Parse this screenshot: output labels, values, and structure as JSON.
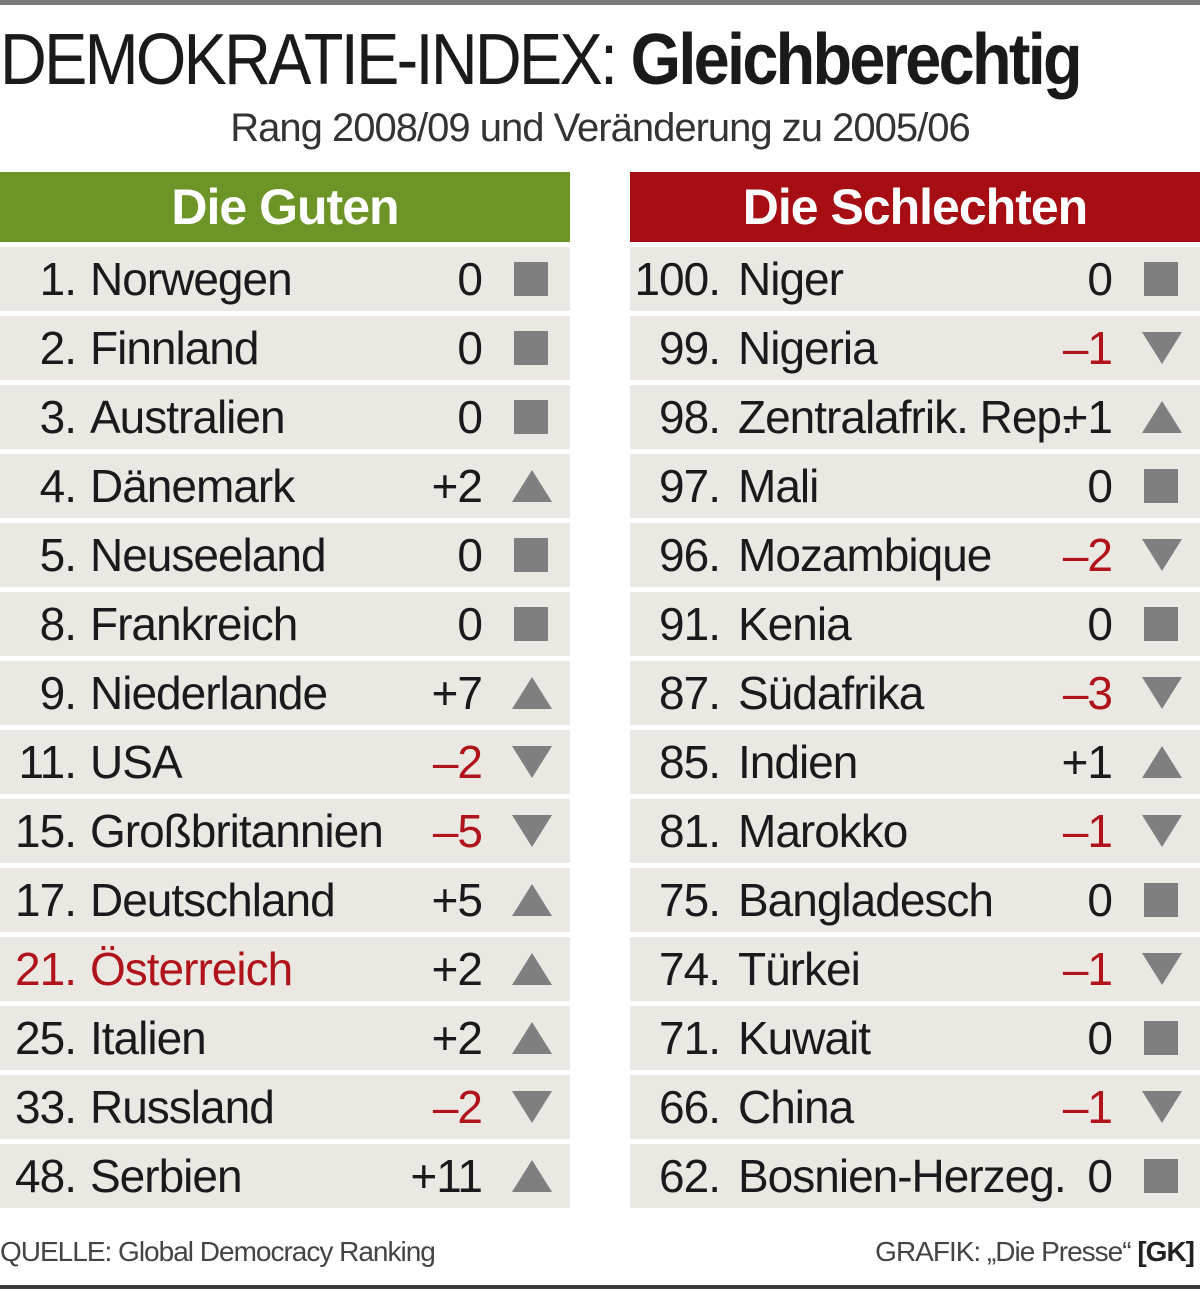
{
  "title_light": "DEMOKRATIE-INDEX:",
  "title_bold": "Gleichberechtigung",
  "subtitle": "Rang 2008/09 und Veränderung zu 2005/06",
  "source": "QUELLE: Global Democracy Ranking",
  "credit": "GRAFIK: „Die Presse“",
  "credit_tag": "[GK]",
  "colors": {
    "good": "#6d9426",
    "bad": "#a60e14",
    "negative": "#b0141a",
    "symbol": "#7f7f7f",
    "row_bg": "#ebe8e4"
  },
  "chart_data": {
    "type": "table",
    "tables": [
      {
        "header": "Die Guten",
        "rows": [
          {
            "rank": "1.",
            "country": "Norwegen",
            "change": "0",
            "trend": "square"
          },
          {
            "rank": "2.",
            "country": "Finnland",
            "change": "0",
            "trend": "square"
          },
          {
            "rank": "3.",
            "country": "Australien",
            "change": "0",
            "trend": "square"
          },
          {
            "rank": "4.",
            "country": "Dänemark",
            "change": "+2",
            "trend": "up"
          },
          {
            "rank": "5.",
            "country": "Neuseeland",
            "change": "0",
            "trend": "square"
          },
          {
            "rank": "8.",
            "country": "Frankreich",
            "change": "0",
            "trend": "square"
          },
          {
            "rank": "9.",
            "country": "Niederlande",
            "change": "+7",
            "trend": "up"
          },
          {
            "rank": "11.",
            "country": "USA",
            "change": "–2",
            "trend": "down"
          },
          {
            "rank": "15.",
            "country": "Großbritannien",
            "change": "–5",
            "trend": "down"
          },
          {
            "rank": "17.",
            "country": "Deutschland",
            "change": "+5",
            "trend": "up"
          },
          {
            "rank": "21.",
            "country": "Österreich",
            "change": "+2",
            "trend": "up",
            "highlight": true
          },
          {
            "rank": "25.",
            "country": "Italien",
            "change": "+2",
            "trend": "up"
          },
          {
            "rank": "33.",
            "country": "Russland",
            "change": "–2",
            "trend": "down"
          },
          {
            "rank": "48.",
            "country": "Serbien",
            "change": "+11",
            "trend": "up"
          }
        ]
      },
      {
        "header": "Die Schlechten",
        "rows": [
          {
            "rank": "100.",
            "country": "Niger",
            "change": "0",
            "trend": "square"
          },
          {
            "rank": "99.",
            "country": "Nigeria",
            "change": "–1",
            "trend": "down"
          },
          {
            "rank": "98.",
            "country": "Zentralafrik. Rep.",
            "change": "+1",
            "trend": "up"
          },
          {
            "rank": "97.",
            "country": "Mali",
            "change": "0",
            "trend": "square"
          },
          {
            "rank": "96.",
            "country": "Mozambique",
            "change": "–2",
            "trend": "down"
          },
          {
            "rank": "91.",
            "country": "Kenia",
            "change": "0",
            "trend": "square"
          },
          {
            "rank": "87.",
            "country": "Südafrika",
            "change": "–3",
            "trend": "down"
          },
          {
            "rank": "85.",
            "country": "Indien",
            "change": "+1",
            "trend": "up"
          },
          {
            "rank": "81.",
            "country": "Marokko",
            "change": "–1",
            "trend": "down"
          },
          {
            "rank": "75.",
            "country": "Bangladesch",
            "change": "0",
            "trend": "square"
          },
          {
            "rank": "74.",
            "country": "Türkei",
            "change": "–1",
            "trend": "down"
          },
          {
            "rank": "71.",
            "country": "Kuwait",
            "change": "0",
            "trend": "square"
          },
          {
            "rank": "66.",
            "country": "China",
            "change": "–1",
            "trend": "down"
          },
          {
            "rank": "62.",
            "country": "Bosnien-Herzeg.",
            "change": "0",
            "trend": "square"
          }
        ]
      }
    ]
  }
}
